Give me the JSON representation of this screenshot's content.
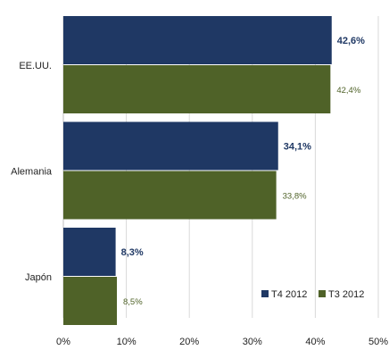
{
  "chart_data": {
    "type": "bar",
    "orientation": "horizontal",
    "categories": [
      "EE.UU.",
      "Alemania",
      "Japón"
    ],
    "series": [
      {
        "name": "T4 2012",
        "values": [
          42.6,
          34.1,
          8.3
        ],
        "labels": [
          "42,6%",
          "34,1%",
          "8,3%"
        ],
        "color": "#1f3864",
        "label_color": "#1f3864"
      },
      {
        "name": "T3 2012",
        "values": [
          42.4,
          33.8,
          8.5
        ],
        "labels": [
          "42,4%",
          "33,8%",
          "8,5%"
        ],
        "color": "#4f6228",
        "label_color": "#4f6228"
      }
    ],
    "xlim": [
      0,
      50
    ],
    "xticks": [
      "0%",
      "10%",
      "20%",
      "30%",
      "40%",
      "50%"
    ],
    "grid": true,
    "legend_position": "bottom-right"
  }
}
